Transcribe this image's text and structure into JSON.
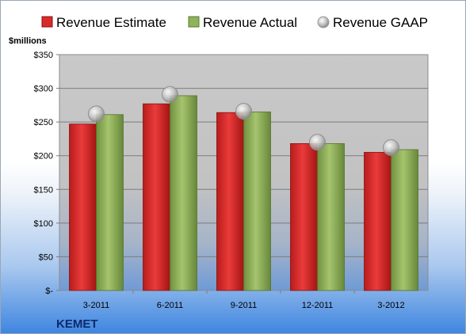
{
  "chart_data": {
    "type": "bar",
    "company": "KEMET",
    "unit_label": "$millions",
    "categories": [
      "3-2011",
      "6-2011",
      "9-2011",
      "12-2011",
      "3-2012"
    ],
    "series": [
      {
        "name": "Revenue Estimate",
        "mark": "bar",
        "color": "#d92a2a",
        "values": [
          247,
          277,
          264,
          218,
          205
        ]
      },
      {
        "name": "Revenue Actual",
        "mark": "bar",
        "color": "#8fb35a",
        "values": [
          261,
          289,
          265,
          218,
          209
        ]
      },
      {
        "name": "Revenue GAAP",
        "mark": "point",
        "color": "#c8c8c8",
        "values": [
          262,
          291,
          266,
          220,
          212
        ]
      }
    ],
    "y_ticks": [
      {
        "value": 350,
        "label": "$350"
      },
      {
        "value": 300,
        "label": "$300"
      },
      {
        "value": 250,
        "label": "$250"
      },
      {
        "value": 200,
        "label": "$200"
      },
      {
        "value": 150,
        "label": "$150"
      },
      {
        "value": 100,
        "label": "$100"
      },
      {
        "value": 50,
        "label": "$50"
      },
      {
        "value": 0,
        "label": "$-"
      }
    ],
    "ylim": [
      0,
      350
    ],
    "grid": true,
    "legend_position": "top"
  }
}
